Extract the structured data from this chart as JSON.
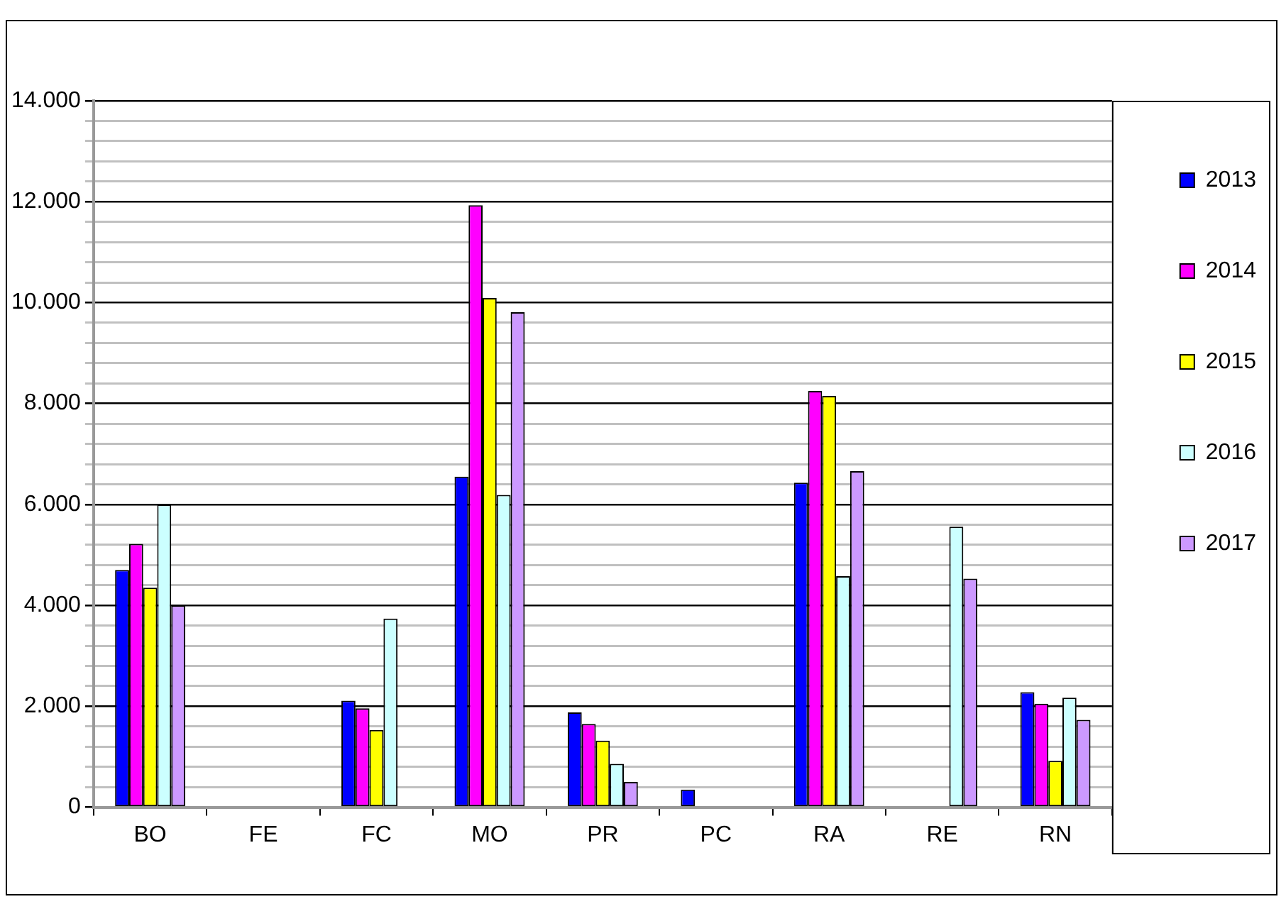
{
  "chart_data": {
    "type": "bar",
    "categories": [
      "BO",
      "FE",
      "FC",
      "MO",
      "PR",
      "PC",
      "RA",
      "RE",
      "RN"
    ],
    "series": [
      {
        "name": "2013",
        "color": "#0000ff",
        "values": [
          4700,
          null,
          2110,
          6550,
          1880,
          350,
          6430,
          null,
          2280
        ]
      },
      {
        "name": "2014",
        "color": "#ff00ff",
        "values": [
          5220,
          null,
          1960,
          11930,
          1650,
          null,
          8250,
          null,
          2050
        ]
      },
      {
        "name": "2015",
        "color": "#ffff00",
        "values": [
          4350,
          null,
          1530,
          10090,
          1320,
          null,
          8150,
          null,
          920
        ]
      },
      {
        "name": "2016",
        "color": "#ccffff",
        "values": [
          6000,
          null,
          3740,
          6190,
          860,
          null,
          4580,
          5560,
          2170
        ]
      },
      {
        "name": "2017",
        "color": "#cc99ff",
        "values": [
          4000,
          null,
          null,
          9810,
          500,
          null,
          6660,
          4530,
          1730
        ]
      }
    ],
    "ylim": [
      0,
      14000
    ],
    "yticks": [
      0,
      {
        "value": 400,
        "label": null
      },
      {
        "value": 800,
        "label": null
      },
      {
        "value": 1200,
        "label": null
      },
      {
        "value": 1600,
        "label": null
      },
      {
        "value": 2000,
        "label": "2.000"
      },
      {
        "value": 2400,
        "label": null
      },
      {
        "value": 2800,
        "label": null
      },
      {
        "value": 3200,
        "label": null
      },
      {
        "value": 3600,
        "label": null
      },
      {
        "value": 4000,
        "label": "4.000"
      },
      {
        "value": 4400,
        "label": null
      },
      {
        "value": 4800,
        "label": null
      },
      {
        "value": 5200,
        "label": null
      },
      {
        "value": 5600,
        "label": null
      },
      {
        "value": 6000,
        "label": "6.000"
      },
      {
        "value": 6400,
        "label": null
      },
      {
        "value": 6800,
        "label": null
      },
      {
        "value": 7200,
        "label": null
      },
      {
        "value": 7600,
        "label": null
      },
      {
        "value": 8000,
        "label": "8.000"
      },
      {
        "value": 8400,
        "label": null
      },
      {
        "value": 8800,
        "label": null
      },
      {
        "value": 9200,
        "label": null
      },
      {
        "value": 9600,
        "label": null
      },
      {
        "value": 10000,
        "label": "10.000"
      },
      {
        "value": 10400,
        "label": null
      },
      {
        "value": 10800,
        "label": null
      },
      {
        "value": 11200,
        "label": null
      },
      {
        "value": 11600,
        "label": null
      },
      {
        "value": 12000,
        "label": "12.000"
      },
      {
        "value": 12400,
        "label": null
      },
      {
        "value": 12800,
        "label": null
      },
      {
        "value": 13200,
        "label": null
      },
      {
        "value": 13600,
        "label": null
      },
      {
        "value": 14000,
        "label": "14.000"
      }
    ],
    "grid": "y",
    "legend": "right"
  }
}
